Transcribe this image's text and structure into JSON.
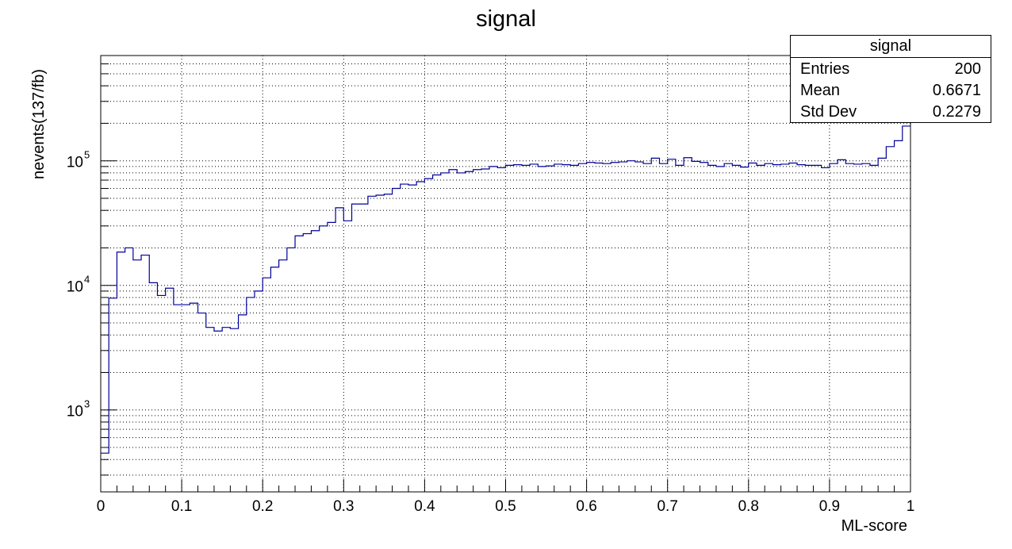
{
  "colors": {
    "line": "#000099",
    "frame": "#000000",
    "grid": "#000000",
    "background": "#ffffff"
  },
  "stats": {
    "title": "signal",
    "rows": [
      {
        "label": "Entries",
        "value": "200"
      },
      {
        "label": "Mean",
        "value": "0.6671"
      },
      {
        "label": "Std Dev",
        "value": "0.2279"
      }
    ]
  },
  "chart_data": {
    "type": "histogram",
    "title": "signal",
    "xlabel": "ML-score",
    "ylabel": "nevents(137/fb)",
    "xlim": [
      0,
      1
    ],
    "ylim": [
      220,
      700000
    ],
    "log_y": true,
    "grid": true,
    "legend_placement": "top-right",
    "x_ticks": [
      "0",
      "0.1",
      "0.2",
      "0.3",
      "0.4",
      "0.5",
      "0.6",
      "0.7",
      "0.8",
      "0.9",
      "1"
    ],
    "y_ticks": [
      {
        "base": "10",
        "exp": "3"
      },
      {
        "base": "10",
        "exp": "4"
      },
      {
        "base": "10",
        "exp": "5"
      }
    ],
    "bin_width": 0.01,
    "values": [
      450,
      7900,
      18500,
      20000,
      16000,
      17500,
      10500,
      8300,
      9500,
      7000,
      7000,
      7200,
      6000,
      4600,
      4300,
      4600,
      4500,
      5800,
      8000,
      9000,
      11500,
      14000,
      16000,
      20000,
      25000,
      26000,
      27500,
      30000,
      32000,
      42000,
      33000,
      45000,
      45000,
      52000,
      53000,
      54000,
      60000,
      65000,
      64000,
      68000,
      72000,
      77000,
      80000,
      85000,
      80000,
      82000,
      85000,
      86000,
      90000,
      88000,
      92000,
      93000,
      92000,
      94000,
      90000,
      91000,
      94000,
      93000,
      92000,
      95000,
      97000,
      96000,
      95000,
      97000,
      98000,
      100000,
      98000,
      95000,
      105000,
      95000,
      103000,
      92000,
      106000,
      99000,
      97000,
      92000,
      90000,
      95000,
      92000,
      89000,
      96000,
      92000,
      95000,
      93000,
      94000,
      96000,
      93000,
      92000,
      92000,
      88000,
      95000,
      102000,
      95000,
      94000,
      95000,
      92000,
      105000,
      130000,
      145000,
      190000
    ]
  }
}
